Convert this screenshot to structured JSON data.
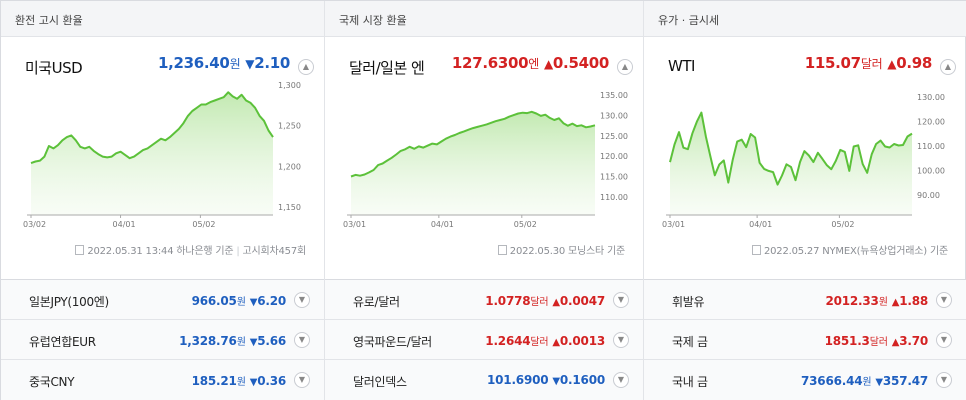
{
  "panels": [
    {
      "header": "환전 고시 환율",
      "hero": {
        "name": "미국USD",
        "value": "1,236.40",
        "unit": "원",
        "dir": "down",
        "arrow": "▼",
        "change": "2.10"
      },
      "source": {
        "text": "2022.05.31 13:44 하나은행 기준",
        "extra": "고시회차457회"
      },
      "chart_data": {
        "type": "area",
        "xlabels": [
          "03/02",
          "04/01",
          "05/02"
        ],
        "ylabels": [
          "1,300",
          "1,250",
          "1,200",
          "1,150"
        ],
        "ylim": [
          1150,
          1300
        ],
        "values": [
          1204,
          1206,
          1207,
          1212,
          1225,
          1222,
          1226,
          1232,
          1236,
          1238,
          1232,
          1224,
          1222,
          1224,
          1219,
          1215,
          1212,
          1211,
          1212,
          1216,
          1218,
          1214,
          1210,
          1212,
          1216,
          1220,
          1222,
          1226,
          1230,
          1234,
          1232,
          1236,
          1241,
          1246,
          1253,
          1262,
          1268,
          1272,
          1276,
          1276,
          1279,
          1281,
          1283,
          1285,
          1291,
          1286,
          1283,
          1288,
          1281,
          1278,
          1272,
          1262,
          1256,
          1244,
          1236
        ]
      },
      "rows": [
        {
          "name": "일본JPY(100엔)",
          "value": "966.05",
          "unit": "원",
          "dir": "down",
          "arrow": "▼",
          "change": "6.20"
        },
        {
          "name": "유럽연합EUR",
          "value": "1,328.76",
          "unit": "원",
          "dir": "down",
          "arrow": "▼",
          "change": "5.66"
        },
        {
          "name": "중국CNY",
          "value": "185.21",
          "unit": "원",
          "dir": "down",
          "arrow": "▼",
          "change": "0.36"
        }
      ]
    },
    {
      "header": "국제 시장 환율",
      "hero": {
        "name": "달러/일본 엔",
        "value": "127.6300",
        "unit": "엔",
        "dir": "up",
        "arrow": "▲",
        "change": "0.5400"
      },
      "source": {
        "text": "2022.05.30 모닝스타 기준",
        "extra": ""
      },
      "chart_data": {
        "type": "area",
        "xlabels": [
          "03/01",
          "04/01",
          "05/02"
        ],
        "ylabels": [
          "135.00",
          "130.00",
          "125.00",
          "120.00",
          "115.00",
          "110.00"
        ],
        "ylim": [
          107.5,
          137.5
        ],
        "values": [
          115.0,
          115.4,
          115.2,
          115.5,
          116.0,
          116.6,
          117.8,
          118.2,
          118.9,
          119.6,
          120.4,
          121.3,
          121.7,
          122.3,
          121.8,
          122.4,
          122.1,
          122.6,
          123.1,
          122.9,
          123.6,
          124.3,
          124.8,
          125.2,
          125.7,
          126.1,
          126.5,
          126.9,
          127.2,
          127.5,
          127.8,
          128.2,
          128.6,
          128.9,
          129.2,
          129.7,
          130.1,
          130.5,
          130.7,
          130.6,
          130.9,
          130.5,
          129.9,
          130.2,
          129.4,
          128.9,
          129.3,
          128.1,
          127.5,
          128.0,
          127.4,
          127.6,
          127.1,
          127.3,
          127.6
        ]
      },
      "rows": [
        {
          "name": "유로/달러",
          "value": "1.0778",
          "unit": "달러",
          "dir": "up",
          "arrow": "▲",
          "change": "0.0047"
        },
        {
          "name": "영국파운드/달러",
          "value": "1.2644",
          "unit": "달러",
          "dir": "up",
          "arrow": "▲",
          "change": "0.0013"
        },
        {
          "name": "달러인덱스",
          "value": "101.6900",
          "unit": "",
          "dir": "down",
          "arrow": "▼",
          "change": "0.1600"
        }
      ]
    },
    {
      "header": "유가 · 금시세",
      "hero": {
        "name": "WTI",
        "value": "115.07",
        "unit": "달러",
        "dir": "up",
        "arrow": "▲",
        "change": "0.98"
      },
      "source": {
        "text": "2022.05.27 NYMEX(뉴욕상업거래소) 기준",
        "extra": ""
      },
      "chart_data": {
        "type": "area",
        "xlabels": [
          "03/01",
          "04/01",
          "05/02"
        ],
        "ylabels": [
          "130.00",
          "120.00",
          "110.00",
          "100.00",
          "90.00"
        ],
        "ylim": [
          85,
          135
        ],
        "values": [
          103.4,
          110.6,
          115.7,
          109.3,
          108.7,
          115.2,
          120.0,
          123.7,
          113.8,
          105.9,
          98.0,
          102.4,
          104.1,
          95.0,
          104.3,
          111.8,
          112.6,
          109.5,
          114.9,
          113.5,
          103.1,
          100.6,
          99.8,
          99.3,
          94.2,
          97.9,
          102.5,
          101.4,
          96.0,
          103.4,
          107.9,
          106.1,
          103.4,
          107.2,
          104.7,
          102.1,
          100.5,
          103.9,
          108.4,
          107.6,
          99.8,
          109.8,
          110.3,
          102.6,
          99.0,
          106.6,
          110.8,
          112.2,
          109.8,
          109.4,
          110.8,
          110.2,
          110.4,
          113.9,
          115.07
        ]
      },
      "rows": [
        {
          "name": "휘발유",
          "value": "2012.33",
          "unit": "원",
          "dir": "up",
          "arrow": "▲",
          "change": "1.88"
        },
        {
          "name": "국제 금",
          "value": "1851.3",
          "unit": "달러",
          "dir": "up",
          "arrow": "▲",
          "change": "3.70"
        },
        {
          "name": "국내 금",
          "value": "73666.44",
          "unit": "원",
          "dir": "down",
          "arrow": "▼",
          "change": "357.47"
        }
      ]
    }
  ],
  "colors": {
    "up": "#d32222",
    "down": "#1f5fbf",
    "line": "#5cc13a",
    "fill": "#e4f5dc"
  },
  "icons": {
    "collapse": "chevron-up-icon",
    "expand": "chevron-down-icon",
    "source": "document-icon"
  }
}
